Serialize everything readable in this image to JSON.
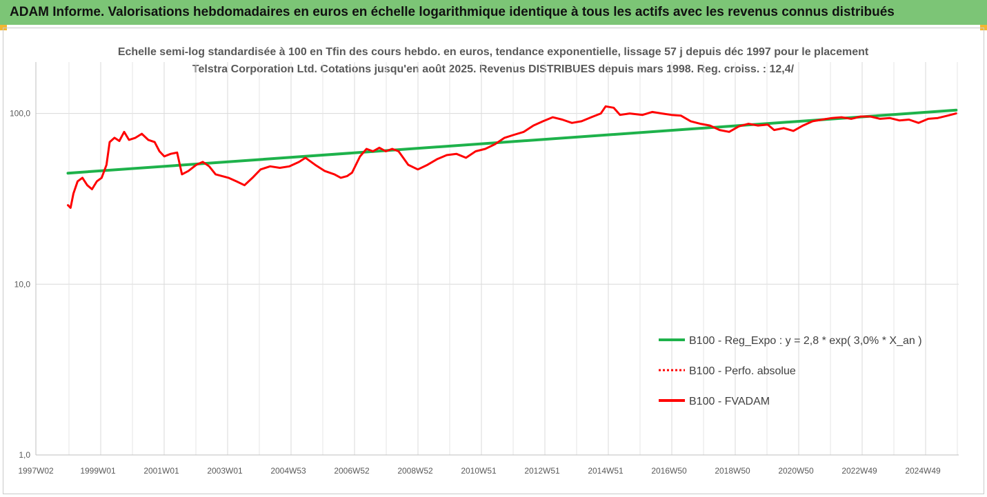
{
  "header": {
    "title": "ADAM Informe. Valorisations hebdomadaires en euros en échelle logarithmique identique à tous les actifs avec les revenus connus distribués",
    "accent_color": "#7cc576"
  },
  "chart_data": {
    "type": "line",
    "title": "Echelle semi-log standardisée à 100 en Tfin des cours hebdo. en euros, tendance exponentielle, lissage 57 j depuis déc 1997 pour le placement Telstra Corporation Ltd. Cotations jusqu'en août 2025. Revenus DISTRIBUES depuis mars 1998. Reg. croiss. : 12,4/",
    "xlabel": "",
    "ylabel": "",
    "y_scale": "log",
    "ylim": [
      1,
      200
    ],
    "y_ticks": [
      {
        "value": 1,
        "label": "1,0"
      },
      {
        "value": 10,
        "label": "10,0"
      },
      {
        "value": 100,
        "label": "100,0"
      }
    ],
    "x_tick_labels": [
      "1997W02",
      "1999W01",
      "2001W01",
      "2003W01",
      "2004W53",
      "2006W52",
      "2008W52",
      "2010W51",
      "2012W51",
      "2014W51",
      "2016W50",
      "2018W50",
      "2020W50",
      "2022W49",
      "2024W49"
    ],
    "x_range_years": [
      1997.0,
      2025.75
    ],
    "grid": "vertical",
    "legend_position": "lower-right",
    "series": [
      {
        "name": "B100 - Reg_Expo : y = 2,8 * exp( 3,0% *  X_an )",
        "color": "#1eb24b",
        "style": "solid",
        "x": [
          1998.0,
          2025.67
        ],
        "values": [
          44.7,
          104.5
        ]
      },
      {
        "name": "B100 - Perfo. absolue",
        "color": "#ff0000",
        "style": "dotted",
        "x": [],
        "values": []
      },
      {
        "name": "B100 - FVADAM",
        "color": "#ff0000",
        "style": "solid",
        "x": [
          1998.0,
          1998.08,
          1998.17,
          1998.3,
          1998.45,
          1998.6,
          1998.75,
          1998.9,
          1999.05,
          1999.2,
          1999.3,
          1999.45,
          1999.6,
          1999.75,
          1999.9,
          2000.1,
          2000.3,
          2000.5,
          2000.7,
          2000.85,
          2001.0,
          2001.2,
          2001.4,
          2001.55,
          2001.75,
          2002.0,
          2002.2,
          2002.4,
          2002.6,
          2002.8,
          2003.0,
          2003.25,
          2003.5,
          2003.75,
          2004.0,
          2004.3,
          2004.6,
          2004.9,
          2005.2,
          2005.4,
          2005.7,
          2006.0,
          2006.3,
          2006.5,
          2006.7,
          2006.85,
          2007.1,
          2007.3,
          2007.5,
          2007.7,
          2007.9,
          2008.1,
          2008.3,
          2008.6,
          2008.9,
          2009.2,
          2009.5,
          2009.8,
          2010.1,
          2010.4,
          2010.7,
          2011.0,
          2011.3,
          2011.6,
          2011.9,
          2012.2,
          2012.5,
          2012.8,
          2013.1,
          2013.4,
          2013.7,
          2014.0,
          2014.3,
          2014.6,
          2014.75,
          2015.0,
          2015.2,
          2015.5,
          2015.9,
          2016.2,
          2016.5,
          2016.8,
          2017.1,
          2017.4,
          2017.7,
          2018.0,
          2018.3,
          2018.6,
          2018.9,
          2019.2,
          2019.5,
          2019.8,
          2020.0,
          2020.3,
          2020.6,
          2020.9,
          2021.2,
          2021.5,
          2021.8,
          2022.1,
          2022.4,
          2022.7,
          2023.0,
          2023.3,
          2023.6,
          2023.9,
          2024.2,
          2024.5,
          2024.8,
          2025.1,
          2025.4,
          2025.67
        ],
        "values": [
          29,
          28,
          34,
          40,
          42,
          38,
          36,
          40,
          42,
          50,
          68,
          72,
          69,
          78,
          70,
          72,
          76,
          70,
          68,
          60,
          56,
          58,
          59,
          44,
          46,
          50,
          52,
          49,
          44,
          43,
          42,
          40,
          38,
          42,
          47,
          49,
          48,
          49,
          52,
          55,
          50,
          46,
          44,
          42,
          43,
          45,
          56,
          62,
          60,
          63,
          60,
          62,
          60,
          50,
          47,
          50,
          54,
          57,
          58,
          55,
          60,
          62,
          66,
          72,
          75,
          78,
          85,
          90,
          95,
          92,
          88,
          90,
          95,
          100,
          110,
          108,
          98,
          100,
          98,
          102,
          100,
          98,
          97,
          90,
          87,
          85,
          80,
          78,
          84,
          87,
          85,
          86,
          80,
          82,
          79,
          85,
          90,
          92,
          94,
          95,
          93,
          96,
          96,
          93,
          94,
          91,
          92,
          88,
          93,
          94,
          97,
          100
        ]
      }
    ]
  }
}
